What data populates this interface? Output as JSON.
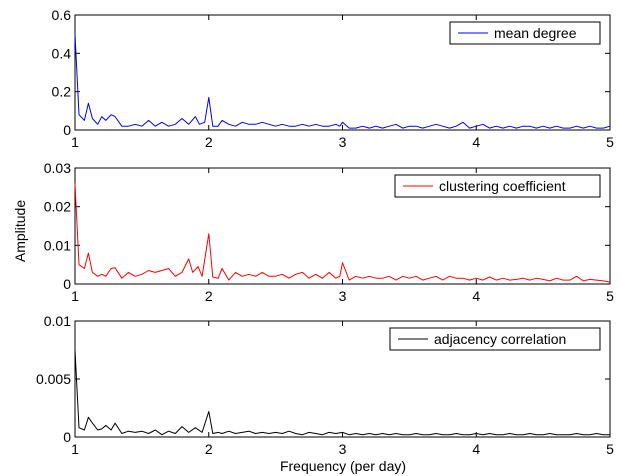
{
  "figure": {
    "xlabel": "Frequency (per day)",
    "ylabel": "Amplitude"
  },
  "chart_data": [
    {
      "type": "line",
      "xlim": [
        1,
        5
      ],
      "ylim": [
        0,
        0.6
      ],
      "xticks": [
        "1",
        "2",
        "3",
        "4",
        "5"
      ],
      "yticks": [
        {
          "value": 0,
          "label": "0"
        },
        {
          "value": 0.2,
          "label": "0.2"
        },
        {
          "value": 0.4,
          "label": "0.4"
        },
        {
          "value": 0.6,
          "label": "0.6"
        }
      ],
      "legend_position": "top-right",
      "series": [
        {
          "name": "mean degree",
          "color": "#0000ff",
          "x": [
            1.0,
            1.03,
            1.07,
            1.1,
            1.13,
            1.17,
            1.2,
            1.23,
            1.27,
            1.3,
            1.35,
            1.4,
            1.45,
            1.5,
            1.55,
            1.6,
            1.65,
            1.7,
            1.75,
            1.8,
            1.85,
            1.9,
            1.93,
            1.97,
            2.0,
            2.03,
            2.07,
            2.1,
            2.15,
            2.2,
            2.25,
            2.3,
            2.35,
            2.4,
            2.45,
            2.5,
            2.55,
            2.6,
            2.65,
            2.7,
            2.75,
            2.8,
            2.85,
            2.9,
            2.95,
            2.98,
            3.0,
            3.05,
            3.1,
            3.15,
            3.2,
            3.25,
            3.3,
            3.35,
            3.4,
            3.45,
            3.5,
            3.55,
            3.6,
            3.65,
            3.7,
            3.75,
            3.8,
            3.85,
            3.9,
            3.95,
            4.0,
            4.05,
            4.1,
            4.15,
            4.2,
            4.25,
            4.3,
            4.35,
            4.4,
            4.45,
            4.5,
            4.55,
            4.6,
            4.65,
            4.7,
            4.75,
            4.8,
            4.85,
            4.9,
            4.95,
            5.0
          ],
          "y": [
            0.5,
            0.08,
            0.05,
            0.14,
            0.06,
            0.03,
            0.07,
            0.05,
            0.08,
            0.07,
            0.02,
            0.02,
            0.03,
            0.02,
            0.05,
            0.02,
            0.04,
            0.02,
            0.03,
            0.06,
            0.03,
            0.07,
            0.03,
            0.04,
            0.17,
            0.02,
            0.02,
            0.05,
            0.03,
            0.02,
            0.04,
            0.03,
            0.03,
            0.04,
            0.03,
            0.02,
            0.03,
            0.02,
            0.02,
            0.03,
            0.02,
            0.03,
            0.02,
            0.02,
            0.03,
            0.02,
            0.04,
            0.01,
            0.01,
            0.02,
            0.01,
            0.02,
            0.01,
            0.02,
            0.03,
            0.01,
            0.02,
            0.02,
            0.01,
            0.02,
            0.03,
            0.02,
            0.01,
            0.02,
            0.04,
            0.01,
            0.02,
            0.03,
            0.01,
            0.02,
            0.01,
            0.02,
            0.01,
            0.02,
            0.02,
            0.01,
            0.02,
            0.01,
            0.02,
            0.01,
            0.01,
            0.02,
            0.01,
            0.02,
            0.01,
            0.01,
            0.02
          ]
        }
      ]
    },
    {
      "type": "line",
      "xlim": [
        1,
        5
      ],
      "ylim": [
        0,
        0.03
      ],
      "xticks": [
        "1",
        "2",
        "3",
        "4",
        "5"
      ],
      "yticks": [
        {
          "value": 0,
          "label": "0"
        },
        {
          "value": 0.01,
          "label": "0.01"
        },
        {
          "value": 0.02,
          "label": "0.02"
        },
        {
          "value": 0.03,
          "label": "0.03"
        }
      ],
      "legend_position": "top-right",
      "series": [
        {
          "name": "clustering coefficient",
          "color": "#ff0000",
          "x": [
            1.0,
            1.03,
            1.07,
            1.1,
            1.13,
            1.17,
            1.2,
            1.23,
            1.27,
            1.3,
            1.35,
            1.4,
            1.45,
            1.5,
            1.55,
            1.6,
            1.65,
            1.7,
            1.75,
            1.8,
            1.85,
            1.88,
            1.92,
            1.95,
            2.0,
            2.03,
            2.07,
            2.1,
            2.15,
            2.2,
            2.25,
            2.3,
            2.35,
            2.4,
            2.45,
            2.5,
            2.55,
            2.6,
            2.65,
            2.7,
            2.75,
            2.8,
            2.85,
            2.9,
            2.95,
            2.98,
            3.0,
            3.05,
            3.1,
            3.15,
            3.2,
            3.25,
            3.3,
            3.35,
            3.4,
            3.45,
            3.5,
            3.55,
            3.6,
            3.65,
            3.7,
            3.75,
            3.8,
            3.85,
            3.9,
            3.95,
            4.0,
            4.05,
            4.1,
            4.15,
            4.2,
            4.25,
            4.3,
            4.35,
            4.4,
            4.45,
            4.5,
            4.55,
            4.6,
            4.65,
            4.7,
            4.75,
            4.8,
            4.85,
            4.9,
            4.95,
            5.0
          ],
          "y": [
            0.026,
            0.005,
            0.004,
            0.008,
            0.003,
            0.002,
            0.0025,
            0.002,
            0.004,
            0.0042,
            0.0015,
            0.003,
            0.002,
            0.0025,
            0.0035,
            0.003,
            0.0035,
            0.004,
            0.002,
            0.003,
            0.0065,
            0.003,
            0.0045,
            0.002,
            0.013,
            0.0018,
            0.0015,
            0.004,
            0.001,
            0.003,
            0.002,
            0.0025,
            0.002,
            0.003,
            0.002,
            0.002,
            0.0025,
            0.0015,
            0.0025,
            0.003,
            0.0015,
            0.0025,
            0.0015,
            0.003,
            0.0015,
            0.002,
            0.0055,
            0.001,
            0.002,
            0.0015,
            0.002,
            0.0015,
            0.0015,
            0.002,
            0.001,
            0.002,
            0.0015,
            0.002,
            0.001,
            0.0015,
            0.002,
            0.001,
            0.002,
            0.0015,
            0.0015,
            0.001,
            0.0015,
            0.001,
            0.0018,
            0.001,
            0.0015,
            0.001,
            0.0012,
            0.0015,
            0.001,
            0.0015,
            0.0012,
            0.0008,
            0.0015,
            0.001,
            0.001,
            0.002,
            0.0008,
            0.0012,
            0.001,
            0.0008,
            0.0005
          ]
        }
      ]
    },
    {
      "type": "line",
      "xlim": [
        1,
        5
      ],
      "ylim": [
        0,
        0.01
      ],
      "xticks": [
        "1",
        "2",
        "3",
        "4",
        "5"
      ],
      "yticks": [
        {
          "value": 0,
          "label": "0"
        },
        {
          "value": 0.005,
          "label": "0.005"
        },
        {
          "value": 0.01,
          "label": "0.01"
        }
      ],
      "legend_position": "top-right",
      "series": [
        {
          "name": "adjacency correlation",
          "color": "#000000",
          "x": [
            1.0,
            1.03,
            1.07,
            1.1,
            1.13,
            1.17,
            1.2,
            1.23,
            1.27,
            1.3,
            1.35,
            1.4,
            1.45,
            1.5,
            1.55,
            1.6,
            1.65,
            1.7,
            1.75,
            1.8,
            1.85,
            1.9,
            1.95,
            2.0,
            2.03,
            2.07,
            2.1,
            2.15,
            2.2,
            2.25,
            2.3,
            2.35,
            2.4,
            2.45,
            2.5,
            2.55,
            2.6,
            2.65,
            2.7,
            2.75,
            2.8,
            2.85,
            2.9,
            2.95,
            3.0,
            3.05,
            3.1,
            3.15,
            3.2,
            3.25,
            3.3,
            3.35,
            3.4,
            3.45,
            3.5,
            3.55,
            3.6,
            3.65,
            3.7,
            3.75,
            3.8,
            3.85,
            3.9,
            3.95,
            4.0,
            4.05,
            4.1,
            4.15,
            4.2,
            4.25,
            4.3,
            4.35,
            4.4,
            4.45,
            4.5,
            4.55,
            4.6,
            4.65,
            4.7,
            4.75,
            4.8,
            4.85,
            4.9,
            4.95,
            5.0
          ],
          "y": [
            0.0075,
            0.0008,
            0.0006,
            0.0017,
            0.0012,
            0.0006,
            0.0007,
            0.001,
            0.0006,
            0.0012,
            0.0003,
            0.0005,
            0.0004,
            0.0005,
            0.0003,
            0.0006,
            0.0002,
            0.0005,
            0.0003,
            0.0009,
            0.0004,
            0.0008,
            0.0004,
            0.0022,
            0.0003,
            0.0004,
            0.0003,
            0.0005,
            0.0003,
            0.0004,
            0.0005,
            0.0003,
            0.0004,
            0.0003,
            0.0004,
            0.0003,
            0.0005,
            0.0003,
            0.0002,
            0.0004,
            0.0003,
            0.0002,
            0.0004,
            0.0003,
            0.0004,
            0.0002,
            0.0003,
            0.0002,
            0.0003,
            0.0002,
            0.0003,
            0.0002,
            0.0003,
            0.0002,
            0.0002,
            0.0003,
            0.0002,
            0.0002,
            0.0003,
            0.0002,
            0.0002,
            0.0003,
            0.0002,
            0.0002,
            0.0003,
            0.0002,
            0.0003,
            0.0002,
            0.0002,
            0.0003,
            0.0002,
            0.0002,
            0.0003,
            0.0002,
            0.0002,
            0.0003,
            0.0002,
            0.0002,
            0.0002,
            0.0003,
            0.0002,
            0.0002,
            0.0003,
            0.0002,
            0.0002
          ]
        }
      ]
    }
  ]
}
